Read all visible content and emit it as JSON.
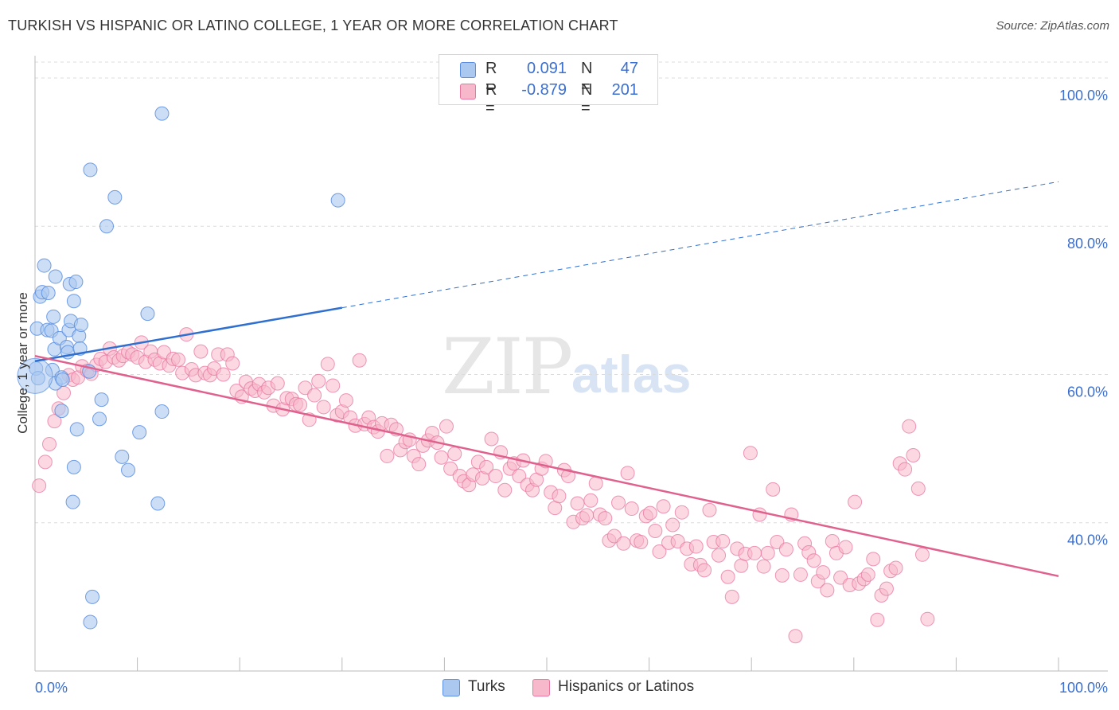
{
  "header": {
    "title": "TURKISH VS HISPANIC OR LATINO COLLEGE, 1 YEAR OR MORE CORRELATION CHART",
    "source": "Source: ZipAtlas.com"
  },
  "watermark": {
    "zip": "ZIP",
    "atlas": "atlas"
  },
  "legend": {
    "rows": [
      {
        "r_label": "R =",
        "r_value": "0.091",
        "n_label": "N =",
        "n_value": "47",
        "color": "#aac8f0"
      },
      {
        "r_label": "R =",
        "r_value": "-0.879",
        "n_label": "N =",
        "n_value": "201",
        "color": "#f7b8cb"
      }
    ]
  },
  "bottom_legend": {
    "items": [
      {
        "label": "Turks",
        "color": "#aac8f0"
      },
      {
        "label": "Hispanics or Latinos",
        "color": "#f7b8cb"
      }
    ]
  },
  "chart_data": {
    "type": "scatter",
    "title": "TURKISH VS HISPANIC OR LATINO COLLEGE, 1 YEAR OR MORE CORRELATION CHART",
    "xlabel": "",
    "ylabel": "College, 1 year or more",
    "xlim": [
      0,
      100
    ],
    "ylim": [
      20,
      103
    ],
    "x_tick_labels": [
      "0.0%",
      "100.0%"
    ],
    "y_ticks": [
      40,
      60,
      80,
      100
    ],
    "y_tick_labels": [
      "40.0%",
      "60.0%",
      "80.0%",
      "100.0%"
    ],
    "grid": true,
    "colors": {
      "turks": "#5b8ee0",
      "turks_fill": "#aac8f0",
      "hisp": "#e8769f",
      "hisp_fill": "#f7b8cb",
      "turks_line": "#2f6fcf",
      "hisp_line": "#e0608e"
    },
    "series": [
      {
        "name": "Turks",
        "points": [
          [
            0.2,
            66.2
          ],
          [
            0.5,
            70.5
          ],
          [
            0.7,
            71.1
          ],
          [
            0.9,
            74.7
          ],
          [
            1.2,
            66.0
          ],
          [
            1.3,
            71.0
          ],
          [
            1.6,
            65.9
          ],
          [
            1.7,
            60.6
          ],
          [
            1.9,
            63.4
          ],
          [
            1.8,
            67.8
          ],
          [
            2.0,
            58.8
          ],
          [
            2.0,
            73.2
          ],
          [
            2.4,
            64.9
          ],
          [
            2.6,
            59.6
          ],
          [
            2.7,
            59.3
          ],
          [
            2.6,
            55.1
          ],
          [
            3.1,
            63.7
          ],
          [
            3.3,
            66.0
          ],
          [
            3.2,
            63.0
          ],
          [
            3.4,
            72.2
          ],
          [
            3.5,
            67.2
          ],
          [
            3.7,
            42.8
          ],
          [
            3.8,
            47.5
          ],
          [
            3.8,
            69.9
          ],
          [
            4.0,
            72.5
          ],
          [
            4.1,
            52.6
          ],
          [
            4.3,
            65.2
          ],
          [
            4.4,
            63.5
          ],
          [
            4.5,
            66.7
          ],
          [
            5.3,
            60.4
          ],
          [
            5.4,
            87.6
          ],
          [
            5.4,
            26.6
          ],
          [
            5.6,
            30.0
          ],
          [
            6.3,
            54.0
          ],
          [
            6.5,
            56.6
          ],
          [
            7.0,
            80.0
          ],
          [
            7.8,
            83.9
          ],
          [
            8.5,
            48.9
          ],
          [
            9.1,
            47.1
          ],
          [
            10.2,
            52.2
          ],
          [
            11.0,
            68.2
          ],
          [
            12.0,
            42.6
          ],
          [
            12.4,
            55.0
          ],
          [
            12.4,
            95.2
          ],
          [
            29.6,
            83.5
          ],
          [
            0.1,
            60.8
          ],
          [
            0.3,
            59.5
          ]
        ],
        "big_point": [
          0.0,
          59.8
        ]
      },
      {
        "name": "Hispanics or Latinos",
        "points": [
          [
            0.4,
            45.0
          ],
          [
            1.0,
            48.2
          ],
          [
            1.4,
            50.6
          ],
          [
            1.9,
            53.7
          ],
          [
            2.3,
            55.4
          ],
          [
            2.8,
            57.5
          ],
          [
            3.3,
            59.9
          ],
          [
            3.7,
            59.3
          ],
          [
            4.2,
            59.6
          ],
          [
            4.6,
            61.1
          ],
          [
            5.1,
            60.5
          ],
          [
            5.5,
            60.1
          ],
          [
            6.0,
            61.3
          ],
          [
            6.4,
            62.1
          ],
          [
            6.9,
            61.7
          ],
          [
            7.3,
            63.5
          ],
          [
            7.7,
            62.3
          ],
          [
            8.2,
            61.9
          ],
          [
            8.6,
            62.5
          ],
          [
            9.1,
            63.0
          ],
          [
            9.5,
            62.7
          ],
          [
            10.0,
            62.3
          ],
          [
            10.4,
            64.3
          ],
          [
            10.8,
            61.7
          ],
          [
            11.3,
            63.1
          ],
          [
            11.7,
            62.0
          ],
          [
            12.2,
            61.5
          ],
          [
            12.6,
            63.0
          ],
          [
            13.1,
            61.2
          ],
          [
            13.5,
            62.1
          ],
          [
            14.0,
            62.0
          ],
          [
            14.4,
            60.2
          ],
          [
            14.8,
            65.4
          ],
          [
            15.3,
            60.7
          ],
          [
            15.7,
            59.9
          ],
          [
            16.2,
            63.1
          ],
          [
            16.6,
            60.2
          ],
          [
            17.1,
            59.9
          ],
          [
            17.5,
            60.8
          ],
          [
            17.9,
            62.7
          ],
          [
            18.4,
            60.0
          ],
          [
            18.8,
            62.7
          ],
          [
            19.3,
            61.5
          ],
          [
            19.7,
            57.8
          ],
          [
            20.2,
            57.0
          ],
          [
            20.6,
            59.0
          ],
          [
            21.1,
            58.1
          ],
          [
            21.5,
            57.8
          ],
          [
            21.9,
            58.7
          ],
          [
            22.4,
            57.6
          ],
          [
            22.8,
            58.2
          ],
          [
            23.3,
            55.8
          ],
          [
            23.7,
            58.8
          ],
          [
            24.2,
            55.3
          ],
          [
            24.6,
            56.8
          ],
          [
            25.1,
            56.7
          ],
          [
            25.5,
            56.0
          ],
          [
            25.9,
            55.9
          ],
          [
            26.4,
            58.2
          ],
          [
            26.8,
            53.9
          ],
          [
            27.3,
            57.2
          ],
          [
            27.7,
            59.1
          ],
          [
            28.2,
            55.6
          ],
          [
            28.6,
            61.4
          ],
          [
            29.1,
            58.5
          ],
          [
            29.5,
            54.5
          ],
          [
            30.0,
            55.0
          ],
          [
            30.4,
            56.5
          ],
          [
            30.8,
            54.2
          ],
          [
            31.3,
            53.1
          ],
          [
            31.7,
            61.9
          ],
          [
            32.2,
            53.3
          ],
          [
            32.6,
            54.2
          ],
          [
            33.1,
            52.9
          ],
          [
            33.5,
            52.3
          ],
          [
            33.9,
            53.4
          ],
          [
            34.4,
            49.0
          ],
          [
            34.8,
            53.2
          ],
          [
            35.3,
            52.6
          ],
          [
            35.7,
            49.8
          ],
          [
            36.2,
            50.9
          ],
          [
            36.6,
            51.2
          ],
          [
            37.0,
            49.0
          ],
          [
            37.5,
            47.9
          ],
          [
            37.9,
            50.4
          ],
          [
            38.4,
            51.1
          ],
          [
            38.8,
            52.1
          ],
          [
            39.3,
            50.8
          ],
          [
            39.7,
            48.8
          ],
          [
            40.2,
            53.0
          ],
          [
            40.6,
            47.3
          ],
          [
            41.0,
            49.3
          ],
          [
            41.5,
            46.3
          ],
          [
            41.9,
            45.6
          ],
          [
            42.4,
            45.1
          ],
          [
            42.8,
            46.5
          ],
          [
            43.3,
            48.2
          ],
          [
            43.7,
            46.0
          ],
          [
            44.1,
            47.5
          ],
          [
            44.6,
            51.3
          ],
          [
            45.0,
            46.3
          ],
          [
            45.5,
            49.5
          ],
          [
            45.9,
            44.4
          ],
          [
            46.4,
            47.3
          ],
          [
            46.8,
            48.0
          ],
          [
            47.3,
            46.3
          ],
          [
            47.7,
            48.4
          ],
          [
            48.1,
            45.1
          ],
          [
            48.6,
            44.4
          ],
          [
            49.0,
            45.8
          ],
          [
            49.5,
            47.3
          ],
          [
            49.9,
            48.3
          ],
          [
            50.4,
            44.1
          ],
          [
            50.8,
            42.0
          ],
          [
            51.2,
            43.6
          ],
          [
            51.7,
            47.1
          ],
          [
            52.1,
            46.3
          ],
          [
            52.6,
            40.1
          ],
          [
            53.0,
            42.6
          ],
          [
            53.5,
            40.6
          ],
          [
            53.9,
            41.0
          ],
          [
            54.3,
            43.0
          ],
          [
            54.8,
            45.3
          ],
          [
            55.2,
            41.1
          ],
          [
            55.7,
            40.6
          ],
          [
            56.1,
            37.6
          ],
          [
            56.6,
            38.2
          ],
          [
            57.0,
            42.7
          ],
          [
            57.5,
            37.2
          ],
          [
            57.9,
            46.7
          ],
          [
            58.3,
            41.9
          ],
          [
            58.8,
            37.6
          ],
          [
            59.2,
            37.4
          ],
          [
            59.7,
            40.9
          ],
          [
            60.1,
            41.3
          ],
          [
            60.6,
            38.9
          ],
          [
            61.0,
            36.1
          ],
          [
            61.4,
            42.2
          ],
          [
            61.9,
            37.3
          ],
          [
            62.3,
            39.7
          ],
          [
            62.8,
            37.5
          ],
          [
            63.2,
            41.4
          ],
          [
            63.7,
            36.5
          ],
          [
            64.1,
            34.4
          ],
          [
            64.6,
            36.8
          ],
          [
            65.0,
            34.3
          ],
          [
            65.4,
            33.6
          ],
          [
            65.9,
            41.7
          ],
          [
            66.3,
            37.4
          ],
          [
            66.8,
            35.6
          ],
          [
            67.2,
            37.5
          ],
          [
            67.7,
            32.7
          ],
          [
            68.1,
            30.0
          ],
          [
            68.6,
            36.5
          ],
          [
            69.0,
            34.2
          ],
          [
            69.4,
            35.8
          ],
          [
            69.9,
            49.4
          ],
          [
            70.3,
            35.9
          ],
          [
            70.8,
            41.1
          ],
          [
            71.2,
            34.1
          ],
          [
            71.6,
            35.9
          ],
          [
            72.1,
            44.5
          ],
          [
            72.5,
            37.4
          ],
          [
            73.0,
            32.9
          ],
          [
            73.4,
            36.4
          ],
          [
            73.9,
            41.1
          ],
          [
            74.3,
            24.7
          ],
          [
            74.8,
            33.0
          ],
          [
            75.2,
            37.2
          ],
          [
            75.6,
            36.0
          ],
          [
            76.1,
            34.9
          ],
          [
            76.5,
            32.1
          ],
          [
            77.0,
            33.3
          ],
          [
            77.4,
            30.9
          ],
          [
            77.9,
            37.5
          ],
          [
            78.3,
            35.9
          ],
          [
            78.7,
            32.6
          ],
          [
            79.2,
            36.7
          ],
          [
            79.6,
            31.6
          ],
          [
            80.1,
            42.8
          ],
          [
            80.5,
            31.8
          ],
          [
            81.0,
            32.4
          ],
          [
            81.4,
            33.0
          ],
          [
            81.9,
            35.1
          ],
          [
            82.3,
            26.9
          ],
          [
            82.7,
            30.2
          ],
          [
            83.2,
            31.1
          ],
          [
            83.6,
            33.5
          ],
          [
            84.1,
            33.9
          ],
          [
            84.5,
            48.0
          ],
          [
            85.0,
            47.2
          ],
          [
            85.4,
            53.0
          ],
          [
            85.8,
            49.1
          ],
          [
            86.3,
            44.6
          ],
          [
            86.7,
            35.7
          ],
          [
            87.2,
            27.0
          ]
        ]
      }
    ],
    "trend_lines": [
      {
        "series": "Turks",
        "solid": [
          [
            0,
            61.8
          ],
          [
            30,
            69.0
          ]
        ],
        "dashed": [
          [
            30,
            69.0
          ],
          [
            100,
            86.0
          ]
        ]
      },
      {
        "series": "Hispanics or Latinos",
        "solid": [
          [
            0,
            62.5
          ],
          [
            100,
            32.8
          ]
        ]
      }
    ]
  }
}
